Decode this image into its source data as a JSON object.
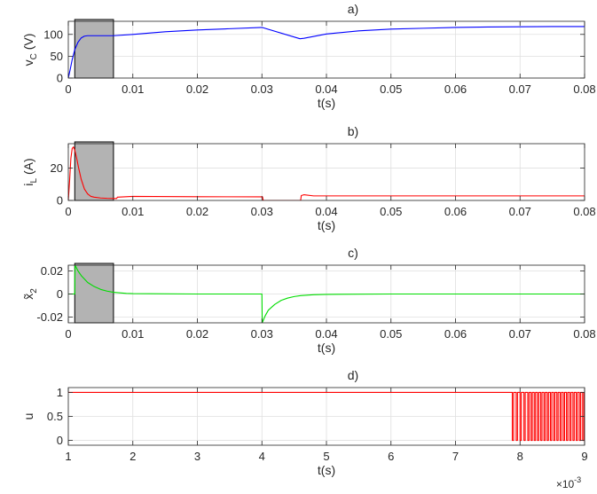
{
  "chart_data": [
    {
      "type": "line",
      "title": "a)",
      "xlabel": "t(s)",
      "ylabel_main": "v",
      "ylabel_sub": "C",
      "ylabel_unit": " (V)",
      "xlim": [
        0,
        0.08
      ],
      "ylim": [
        0,
        130
      ],
      "xticks": [
        0,
        0.01,
        0.02,
        0.03,
        0.04,
        0.05,
        0.06,
        0.07,
        0.08
      ],
      "xtick_labels": [
        "0",
        "0.01",
        "0.02",
        "0.03",
        "0.04",
        "0.05",
        "0.06",
        "0.07",
        "0.08"
      ],
      "yticks": [
        0,
        50,
        100
      ],
      "ytick_labels": [
        "0",
        "50",
        "100"
      ],
      "grid": true,
      "shaded_region": [
        0.001,
        0.007
      ],
      "shade_color": "#b3b3b3",
      "series": [
        {
          "color": "#0000ff",
          "x": [
            0,
            0.0003,
            0.0006,
            0.001,
            0.0015,
            0.002,
            0.0025,
            0.003,
            0.004,
            0.005,
            0.006,
            0.007,
            0.01,
            0.015,
            0.02,
            0.025,
            0.03,
            0.0359,
            0.0365,
            0.04,
            0.045,
            0.05,
            0.055,
            0.06,
            0.065,
            0.07,
            0.075,
            0.08
          ],
          "y": [
            0,
            20,
            42,
            65,
            82,
            92,
            96,
            97,
            97,
            97,
            97,
            97,
            100,
            106,
            110,
            113,
            116,
            90,
            91,
            101,
            108,
            112,
            114,
            116,
            117,
            117.5,
            118,
            118
          ]
        }
      ]
    },
    {
      "type": "line",
      "title": "b)",
      "xlabel": "t(s)",
      "ylabel_main": "i",
      "ylabel_sub": "L",
      "ylabel_unit": " (A)",
      "xlim": [
        0,
        0.08
      ],
      "ylim": [
        0,
        35
      ],
      "xticks": [
        0,
        0.01,
        0.02,
        0.03,
        0.04,
        0.05,
        0.06,
        0.07,
        0.08
      ],
      "xtick_labels": [
        "0",
        "0.01",
        "0.02",
        "0.03",
        "0.04",
        "0.05",
        "0.06",
        "0.07",
        "0.08"
      ],
      "yticks": [
        0,
        20
      ],
      "ytick_labels": [
        "0",
        "20"
      ],
      "grid": true,
      "shaded_region": [
        0.001,
        0.007
      ],
      "shade_color": "#b3b3b3",
      "series": [
        {
          "color": "#ff0000",
          "x": [
            0,
            0.0002,
            0.0004,
            0.0006,
            0.0008,
            0.001,
            0.0013,
            0.0016,
            0.002,
            0.0025,
            0.003,
            0.0035,
            0.004,
            0.005,
            0.006,
            0.007,
            0.0075,
            0.0076,
            0.01,
            0.02,
            0.0301,
            0.0302,
            0.036,
            0.0361,
            0.0365,
            0.038,
            0.05,
            0.06,
            0.07,
            0.08
          ],
          "y": [
            0,
            12,
            26,
            32,
            33,
            31,
            26,
            20,
            13,
            7,
            4,
            2.5,
            2,
            1.5,
            1.3,
            1.2,
            1.2,
            2,
            2.5,
            2.3,
            2.2,
            0,
            0,
            3,
            3.5,
            2.8,
            2.8,
            2.8,
            2.8,
            2.8
          ]
        }
      ]
    },
    {
      "type": "line",
      "title": "c)",
      "xlabel": "t(s)",
      "ylabel_main": "x̃",
      "ylabel_sub": "2",
      "ylabel_unit": "",
      "xlim": [
        0,
        0.08
      ],
      "ylim": [
        -0.025,
        0.025
      ],
      "xticks": [
        0,
        0.01,
        0.02,
        0.03,
        0.04,
        0.05,
        0.06,
        0.07,
        0.08
      ],
      "xtick_labels": [
        "0",
        "0.01",
        "0.02",
        "0.03",
        "0.04",
        "0.05",
        "0.06",
        "0.07",
        "0.08"
      ],
      "yticks": [
        -0.02,
        0,
        0.02
      ],
      "ytick_labels": [
        "-0.02",
        "0",
        "0.02"
      ],
      "grid": true,
      "shaded_region": [
        0.001,
        0.007
      ],
      "shade_color": "#b3b3b3",
      "series": [
        {
          "color": "#00dd00",
          "x": [
            0,
            0.001,
            0.00105,
            0.0015,
            0.002,
            0.003,
            0.004,
            0.005,
            0.006,
            0.007,
            0.008,
            0.009,
            0.01,
            0.02,
            0.03,
            0.03005,
            0.0305,
            0.031,
            0.032,
            0.033,
            0.034,
            0.035,
            0.036,
            0.038,
            0.04,
            0.05,
            0.06,
            0.07,
            0.08
          ],
          "y": [
            0,
            0,
            0.025,
            0.02,
            0.016,
            0.01,
            0.0065,
            0.004,
            0.0025,
            0.0015,
            0.001,
            0.0005,
            0.0003,
            0,
            0,
            -0.025,
            -0.019,
            -0.014,
            -0.009,
            -0.0055,
            -0.0035,
            -0.0022,
            -0.0014,
            -0.0006,
            -0.0003,
            0,
            0,
            0,
            0
          ]
        }
      ]
    },
    {
      "type": "line",
      "title": "d)",
      "xlabel": "t(s)",
      "ylabel_main": "u",
      "ylabel_sub": "",
      "ylabel_unit": "",
      "xlim": [
        1,
        9
      ],
      "ylim": [
        -0.1,
        1.1
      ],
      "xticks": [
        1,
        2,
        3,
        4,
        5,
        6,
        7,
        8,
        9
      ],
      "xtick_labels": [
        "1",
        "2",
        "3",
        "4",
        "5",
        "6",
        "7",
        "8",
        "9"
      ],
      "yticks": [
        0,
        0.5,
        1
      ],
      "ytick_labels": [
        "0",
        "0.5",
        "1"
      ],
      "grid": true,
      "x_multiplier_base": "×10",
      "x_multiplier_exp": "-3",
      "series": [
        {
          "color": "#ff0000",
          "kind": "switching",
          "constant_until": 7.88,
          "constant_value": 1,
          "switch_times": [
            7.88,
            7.9,
            7.94,
            7.96,
            8.0,
            8.02,
            8.06,
            8.08,
            8.12,
            8.14,
            8.17,
            8.19,
            8.22,
            8.24,
            8.27,
            8.29,
            8.32,
            8.34,
            8.37,
            8.39,
            8.42,
            8.44,
            8.47,
            8.49,
            8.52,
            8.54,
            8.57,
            8.59,
            8.62,
            8.64,
            8.67,
            8.69,
            8.72,
            8.74,
            8.77,
            8.79,
            8.82,
            8.84,
            8.87,
            8.89,
            8.92,
            8.94,
            8.97,
            8.99
          ]
        }
      ]
    }
  ]
}
